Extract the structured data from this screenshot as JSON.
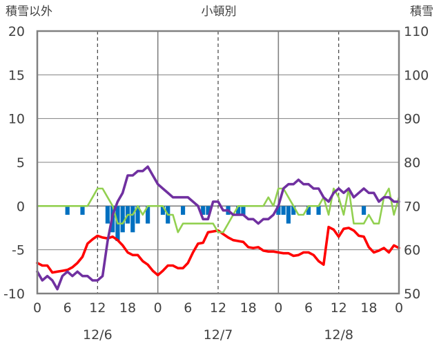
{
  "chart_data": {
    "type": "bar-line-combo",
    "title": "小頓別",
    "left_axis_label": "積雪以外",
    "right_axis_label": "積雪",
    "left_ylim": [
      -10,
      20
    ],
    "left_yticks": [
      20,
      15,
      10,
      5,
      0,
      -5,
      -10
    ],
    "right_ylim": [
      50,
      110
    ],
    "right_yticks": [
      110,
      100,
      90,
      80,
      70,
      60,
      50
    ],
    "x_range": [
      0,
      72
    ],
    "x_ticks": [
      {
        "x": 0,
        "label": "0"
      },
      {
        "x": 6,
        "label": "6"
      },
      {
        "x": 12,
        "label": "12"
      },
      {
        "x": 18,
        "label": "18"
      },
      {
        "x": 24,
        "label": "0"
      },
      {
        "x": 30,
        "label": "6"
      },
      {
        "x": 36,
        "label": "12"
      },
      {
        "x": 42,
        "label": "18"
      },
      {
        "x": 48,
        "label": "0"
      },
      {
        "x": 54,
        "label": "6"
      },
      {
        "x": 60,
        "label": "12"
      },
      {
        "x": 66,
        "label": "18"
      },
      {
        "x": 72,
        "label": "0"
      }
    ],
    "date_labels": [
      {
        "x": 12,
        "label": "12/6"
      },
      {
        "x": 36,
        "label": "12/7"
      },
      {
        "x": 60,
        "label": "12/8"
      }
    ],
    "day_lines_x": [
      24,
      48
    ],
    "dashed_lines_x": [
      12,
      36,
      60
    ],
    "series": [
      {
        "axis": "left",
        "kind": "bar",
        "color": "#0070c0",
        "points": [
          [
            6,
            -1
          ],
          [
            9,
            -1
          ],
          [
            14,
            -2
          ],
          [
            15,
            -3
          ],
          [
            16,
            -4
          ],
          [
            17,
            -3
          ],
          [
            18,
            -2
          ],
          [
            19,
            -3
          ],
          [
            20,
            -2
          ],
          [
            22,
            -2
          ],
          [
            25,
            -1
          ],
          [
            26,
            -2
          ],
          [
            29,
            -1
          ],
          [
            33,
            -1
          ],
          [
            34,
            -1
          ],
          [
            38,
            -1
          ],
          [
            40,
            -1
          ],
          [
            41,
            -1
          ],
          [
            48,
            -1
          ],
          [
            49,
            -1
          ],
          [
            50,
            -2
          ],
          [
            51,
            -1
          ],
          [
            54,
            -1
          ],
          [
            56,
            -1
          ],
          [
            65,
            -1
          ]
        ]
      },
      {
        "axis": "left",
        "kind": "line",
        "color": "#ff0000",
        "points": [
          [
            0,
            -6.5
          ],
          [
            1,
            -6.8
          ],
          [
            2,
            -6.8
          ],
          [
            3,
            -7.6
          ],
          [
            4,
            -7.5
          ],
          [
            5,
            -7.4
          ],
          [
            6,
            -7.3
          ],
          [
            7,
            -7.0
          ],
          [
            8,
            -6.5
          ],
          [
            9,
            -5.8
          ],
          [
            10,
            -4.3
          ],
          [
            11,
            -3.8
          ],
          [
            12,
            -3.4
          ],
          [
            13,
            -3.6
          ],
          [
            14,
            -3.7
          ],
          [
            15,
            -3.5
          ],
          [
            16,
            -3.9
          ],
          [
            17,
            -4.5
          ],
          [
            18,
            -5.3
          ],
          [
            19,
            -5.6
          ],
          [
            20,
            -5.6
          ],
          [
            21,
            -6.3
          ],
          [
            22,
            -6.7
          ],
          [
            23,
            -7.4
          ],
          [
            24,
            -7.9
          ],
          [
            25,
            -7.4
          ],
          [
            26,
            -6.8
          ],
          [
            27,
            -6.8
          ],
          [
            28,
            -7.1
          ],
          [
            29,
            -7.1
          ],
          [
            30,
            -6.5
          ],
          [
            31,
            -5.3
          ],
          [
            32,
            -4.3
          ],
          [
            33,
            -4.2
          ],
          [
            34,
            -3.0
          ],
          [
            35,
            -2.9
          ],
          [
            36,
            -2.8
          ],
          [
            37,
            -3.2
          ],
          [
            38,
            -3.6
          ],
          [
            39,
            -3.9
          ],
          [
            40,
            -4.0
          ],
          [
            41,
            -4.1
          ],
          [
            42,
            -4.7
          ],
          [
            43,
            -4.8
          ],
          [
            44,
            -4.7
          ],
          [
            45,
            -5.1
          ],
          [
            46,
            -5.2
          ],
          [
            47,
            -5.2
          ],
          [
            48,
            -5.3
          ],
          [
            49,
            -5.4
          ],
          [
            50,
            -5.4
          ],
          [
            51,
            -5.7
          ],
          [
            52,
            -5.6
          ],
          [
            53,
            -5.3
          ],
          [
            54,
            -5.3
          ],
          [
            55,
            -5.6
          ],
          [
            56,
            -6.3
          ],
          [
            57,
            -6.7
          ],
          [
            58,
            -2.4
          ],
          [
            59,
            -2.7
          ],
          [
            60,
            -3.5
          ],
          [
            61,
            -2.6
          ],
          [
            62,
            -2.5
          ],
          [
            63,
            -2.8
          ],
          [
            64,
            -3.4
          ],
          [
            65,
            -3.5
          ],
          [
            66,
            -4.7
          ],
          [
            67,
            -5.3
          ],
          [
            68,
            -5.1
          ],
          [
            69,
            -4.8
          ],
          [
            70,
            -5.3
          ],
          [
            71,
            -4.5
          ],
          [
            72,
            -4.8
          ]
        ]
      },
      {
        "axis": "left",
        "kind": "line",
        "color": "#92d050",
        "points": [
          [
            0,
            0
          ],
          [
            1,
            0
          ],
          [
            2,
            0
          ],
          [
            3,
            0
          ],
          [
            4,
            0
          ],
          [
            5,
            0
          ],
          [
            6,
            0
          ],
          [
            7,
            0
          ],
          [
            8,
            0
          ],
          [
            9,
            0
          ],
          [
            10,
            0
          ],
          [
            11,
            1
          ],
          [
            12,
            2
          ],
          [
            13,
            2
          ],
          [
            14,
            1
          ],
          [
            15,
            0
          ],
          [
            16,
            -2
          ],
          [
            17,
            -2
          ],
          [
            18,
            -1
          ],
          [
            19,
            -1
          ],
          [
            20,
            0
          ],
          [
            21,
            -1
          ],
          [
            22,
            0
          ],
          [
            23,
            0
          ],
          [
            24,
            0
          ],
          [
            25,
            0
          ],
          [
            26,
            -1
          ],
          [
            27,
            -1
          ],
          [
            28,
            -3
          ],
          [
            29,
            -2
          ],
          [
            30,
            -2
          ],
          [
            31,
            -2
          ],
          [
            32,
            -2
          ],
          [
            33,
            -2
          ],
          [
            34,
            -2
          ],
          [
            35,
            -2
          ],
          [
            36,
            -3
          ],
          [
            37,
            -3
          ],
          [
            38,
            -2
          ],
          [
            39,
            -1
          ],
          [
            40,
            0
          ],
          [
            41,
            0
          ],
          [
            42,
            0
          ],
          [
            43,
            0
          ],
          [
            44,
            0
          ],
          [
            45,
            0
          ],
          [
            46,
            1
          ],
          [
            47,
            0
          ],
          [
            48,
            2
          ],
          [
            49,
            2
          ],
          [
            50,
            1
          ],
          [
            51,
            0
          ],
          [
            52,
            -1
          ],
          [
            53,
            -1
          ],
          [
            54,
            0
          ],
          [
            55,
            0
          ],
          [
            56,
            0
          ],
          [
            57,
            1
          ],
          [
            58,
            -1
          ],
          [
            59,
            2
          ],
          [
            60,
            1
          ],
          [
            61,
            -1
          ],
          [
            62,
            2
          ],
          [
            63,
            -2
          ],
          [
            64,
            -2
          ],
          [
            65,
            -2
          ],
          [
            66,
            -1
          ],
          [
            67,
            -2
          ],
          [
            68,
            -2
          ],
          [
            69,
            1
          ],
          [
            70,
            2
          ],
          [
            71,
            -1
          ],
          [
            72,
            1
          ]
        ]
      },
      {
        "axis": "right",
        "kind": "line",
        "color": "#7030a0",
        "points": [
          [
            0,
            55
          ],
          [
            1,
            53
          ],
          [
            2,
            54
          ],
          [
            3,
            53
          ],
          [
            4,
            51
          ],
          [
            5,
            54
          ],
          [
            6,
            55
          ],
          [
            7,
            54
          ],
          [
            8,
            55
          ],
          [
            9,
            54
          ],
          [
            10,
            54
          ],
          [
            11,
            53
          ],
          [
            12,
            53
          ],
          [
            13,
            54
          ],
          [
            14,
            62
          ],
          [
            15,
            68
          ],
          [
            16,
            71
          ],
          [
            17,
            73
          ],
          [
            18,
            77
          ],
          [
            19,
            77
          ],
          [
            20,
            78
          ],
          [
            21,
            78
          ],
          [
            22,
            79
          ],
          [
            23,
            77
          ],
          [
            24,
            75
          ],
          [
            25,
            74
          ],
          [
            26,
            73
          ],
          [
            27,
            72
          ],
          [
            28,
            72
          ],
          [
            29,
            72
          ],
          [
            30,
            72
          ],
          [
            31,
            71
          ],
          [
            32,
            70
          ],
          [
            33,
            67
          ],
          [
            34,
            67
          ],
          [
            35,
            71
          ],
          [
            36,
            71
          ],
          [
            37,
            69
          ],
          [
            38,
            69
          ],
          [
            39,
            68
          ],
          [
            40,
            68
          ],
          [
            41,
            68
          ],
          [
            42,
            67
          ],
          [
            43,
            67
          ],
          [
            44,
            66
          ],
          [
            45,
            67
          ],
          [
            46,
            67
          ],
          [
            47,
            68
          ],
          [
            48,
            70
          ],
          [
            49,
            74
          ],
          [
            50,
            75
          ],
          [
            51,
            75
          ],
          [
            52,
            76
          ],
          [
            53,
            75
          ],
          [
            54,
            75
          ],
          [
            55,
            74
          ],
          [
            56,
            74
          ],
          [
            57,
            72
          ],
          [
            58,
            71
          ],
          [
            59,
            73
          ],
          [
            60,
            74
          ],
          [
            61,
            73
          ],
          [
            62,
            74
          ],
          [
            63,
            72
          ],
          [
            64,
            73
          ],
          [
            65,
            74
          ],
          [
            66,
            73
          ],
          [
            67,
            73
          ],
          [
            68,
            71
          ],
          [
            69,
            72
          ],
          [
            70,
            72
          ],
          [
            71,
            71
          ],
          [
            72,
            71
          ]
        ]
      }
    ]
  }
}
